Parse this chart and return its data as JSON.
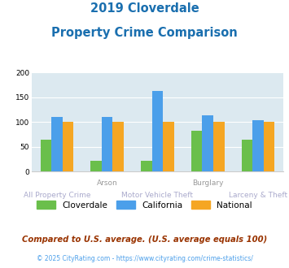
{
  "title_line1": "2019 Cloverdale",
  "title_line2": "Property Crime Comparison",
  "title_color": "#1a6faf",
  "cat_labels_top": [
    "",
    "Arson",
    "",
    "Burglary",
    ""
  ],
  "cat_labels_bot": [
    "All Property Crime",
    "",
    "Motor Vehicle Theft",
    "",
    "Larceny & Theft"
  ],
  "cloverdale": [
    64,
    21,
    21,
    82,
    64
  ],
  "california": [
    110,
    110,
    163,
    114,
    103
  ],
  "national": [
    100,
    100,
    100,
    100,
    100
  ],
  "cloverdale_color": "#6abf4b",
  "california_color": "#4b9fea",
  "national_color": "#f5a623",
  "ylim": [
    0,
    200
  ],
  "yticks": [
    0,
    50,
    100,
    150,
    200
  ],
  "plot_bg": "#dce9f0",
  "footer_text": "© 2025 CityRating.com - https://www.cityrating.com/crime-statistics/",
  "subtitle_text": "Compared to U.S. average. (U.S. average equals 100)",
  "subtitle_color": "#993300",
  "footer_color": "#4b9fea",
  "top_label_color": "#999999",
  "bot_label_color": "#aaaacc"
}
